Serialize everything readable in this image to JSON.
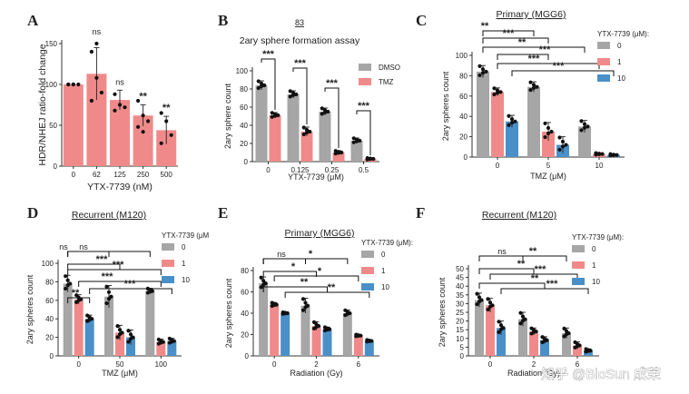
{
  "watermark": "知乎 @BioSun 成茉",
  "chart_data": [
    {
      "panel": "A",
      "type": "bar",
      "title": "",
      "xlabel": "YTX-7739 (nM)",
      "ylabel": "HDR/NHEJ ratio-fold change",
      "ylim": [
        0,
        150
      ],
      "yticks": [
        0,
        50,
        100,
        150
      ],
      "categories": [
        "0",
        "62",
        "125",
        "250",
        "500"
      ],
      "series": [
        {
          "name": "",
          "color": "#F08A8A",
          "values": [
            100,
            113,
            81,
            62,
            44
          ],
          "errors": [
            0,
            32,
            12,
            13,
            17
          ]
        }
      ],
      "points": [
        [
          100,
          100,
          100,
          100,
          100
        ],
        [
          140,
          108,
          90,
          80,
          150
        ],
        [
          88,
          75,
          72,
          68
        ],
        [
          80,
          62,
          55,
          48,
          42
        ],
        [
          65,
          55,
          38,
          28
        ]
      ],
      "sig": [
        "",
        "ns",
        "ns",
        "**",
        "**"
      ],
      "colors": {
        "bar": "#F08A8A"
      }
    },
    {
      "panel": "B",
      "type": "bar",
      "title": "2ary sphere formation assay",
      "subtitle": "83",
      "xlabel": "YTX-7739 (μM)",
      "ylabel": "2ary sphere count",
      "ylim": [
        0,
        100
      ],
      "yticks": [
        0,
        20,
        40,
        60,
        80,
        100
      ],
      "categories": [
        "0",
        "0.125",
        "0.25",
        "0.5"
      ],
      "series": [
        {
          "name": "DMSO",
          "color": "#A6A6A6",
          "values": [
            84,
            74,
            55,
            23
          ],
          "errors": [
            5,
            4,
            4,
            3
          ]
        },
        {
          "name": "TMZ",
          "color": "#F08A8A",
          "values": [
            51,
            33,
            10,
            3
          ],
          "errors": [
            3,
            5,
            2,
            1
          ]
        }
      ],
      "sig": [
        "***",
        "***",
        "***",
        "***"
      ],
      "legend": "top-right"
    },
    {
      "panel": "C",
      "type": "bar",
      "title": "Primary (MGG6)",
      "xlabel": "TMZ (μM)",
      "ylabel": "2ary spheres count",
      "ylim": [
        0,
        100
      ],
      "yticks": [
        0,
        20,
        40,
        60,
        80,
        100
      ],
      "categories": [
        "0",
        "5",
        "10"
      ],
      "legend_title": "YTX-7739 (μM):",
      "series": [
        {
          "name": "0",
          "color": "#A6A6A6",
          "values": [
            84,
            69,
            30
          ],
          "errors": [
            6,
            5,
            6
          ]
        },
        {
          "name": "1",
          "color": "#F08A8A",
          "values": [
            64,
            25,
            3
          ],
          "errors": [
            4,
            9,
            1
          ]
        },
        {
          "name": "10",
          "color": "#4A90C8",
          "values": [
            35,
            12,
            2
          ],
          "errors": [
            6,
            8,
            1
          ]
        }
      ],
      "comparisons": [
        "**",
        "***",
        "**",
        "***",
        "***",
        "***"
      ]
    },
    {
      "panel": "D",
      "type": "bar",
      "title": "Recurrent (M120)",
      "xlabel": "TMZ (μM)",
      "ylabel": "2ary spheres count",
      "ylim": [
        0,
        100
      ],
      "yticks": [
        0,
        20,
        40,
        60,
        80,
        100
      ],
      "categories": [
        "0",
        "50",
        "100"
      ],
      "legend_title": "YTX-7739 (μM",
      "series": [
        {
          "name": "0",
          "color": "#A6A6A6",
          "values": [
            78,
            64,
            70
          ],
          "errors": [
            9,
            12,
            3
          ]
        },
        {
          "name": "1",
          "color": "#F08A8A",
          "values": [
            61,
            25,
            15
          ],
          "errors": [
            5,
            8,
            3
          ]
        },
        {
          "name": "10",
          "color": "#4A90C8",
          "values": [
            40,
            20,
            16
          ],
          "errors": [
            4,
            8,
            3
          ]
        }
      ],
      "comparisons": [
        "ns",
        "ns",
        "***",
        "***",
        "***",
        "***",
        "**"
      ]
    },
    {
      "panel": "E",
      "type": "bar",
      "title": "Primary (MGG6)",
      "xlabel": "Radiation (Gy)",
      "ylabel": "2ary spheres count",
      "ylim": [
        0,
        80
      ],
      "yticks": [
        0,
        20,
        40,
        60,
        80
      ],
      "categories": [
        "0",
        "2",
        "6"
      ],
      "legend_title": "YTX-7739 (μM):",
      "series": [
        {
          "name": "0",
          "color": "#A6A6A6",
          "values": [
            68,
            47,
            40
          ],
          "errors": [
            6,
            7,
            3
          ]
        },
        {
          "name": "1",
          "color": "#F08A8A",
          "values": [
            48,
            28,
            19
          ],
          "errors": [
            2,
            4,
            1
          ]
        },
        {
          "name": "10",
          "color": "#4A90C8",
          "values": [
            40,
            25,
            14
          ],
          "errors": [
            1,
            2,
            1
          ]
        }
      ],
      "comparisons": [
        "ns",
        "*",
        "*",
        "*",
        "**",
        "**"
      ]
    },
    {
      "panel": "F",
      "type": "bar",
      "title": "Recurrent (M120)",
      "xlabel": "Radiation (Gy)",
      "ylabel": "2ary spheres count",
      "ylim": [
        0,
        50
      ],
      "yticks": [
        0,
        5,
        10,
        15,
        20,
        25,
        30,
        35,
        40,
        45,
        50
      ],
      "categories": [
        "0",
        "2",
        "6"
      ],
      "legend_title": "YTX-7739 (μM):",
      "series": [
        {
          "name": "0",
          "color": "#A6A6A6",
          "values": [
            32,
            21,
            13
          ],
          "errors": [
            4,
            4,
            3
          ]
        },
        {
          "name": "1",
          "color": "#F08A8A",
          "values": [
            29,
            14,
            6
          ],
          "errors": [
            4,
            2,
            2
          ]
        },
        {
          "name": "10",
          "color": "#4A90C8",
          "values": [
            16,
            9,
            3
          ],
          "errors": [
            4,
            2,
            1
          ]
        }
      ],
      "comparisons": [
        "ns",
        "**",
        "**",
        "***",
        "**",
        "***"
      ]
    }
  ]
}
